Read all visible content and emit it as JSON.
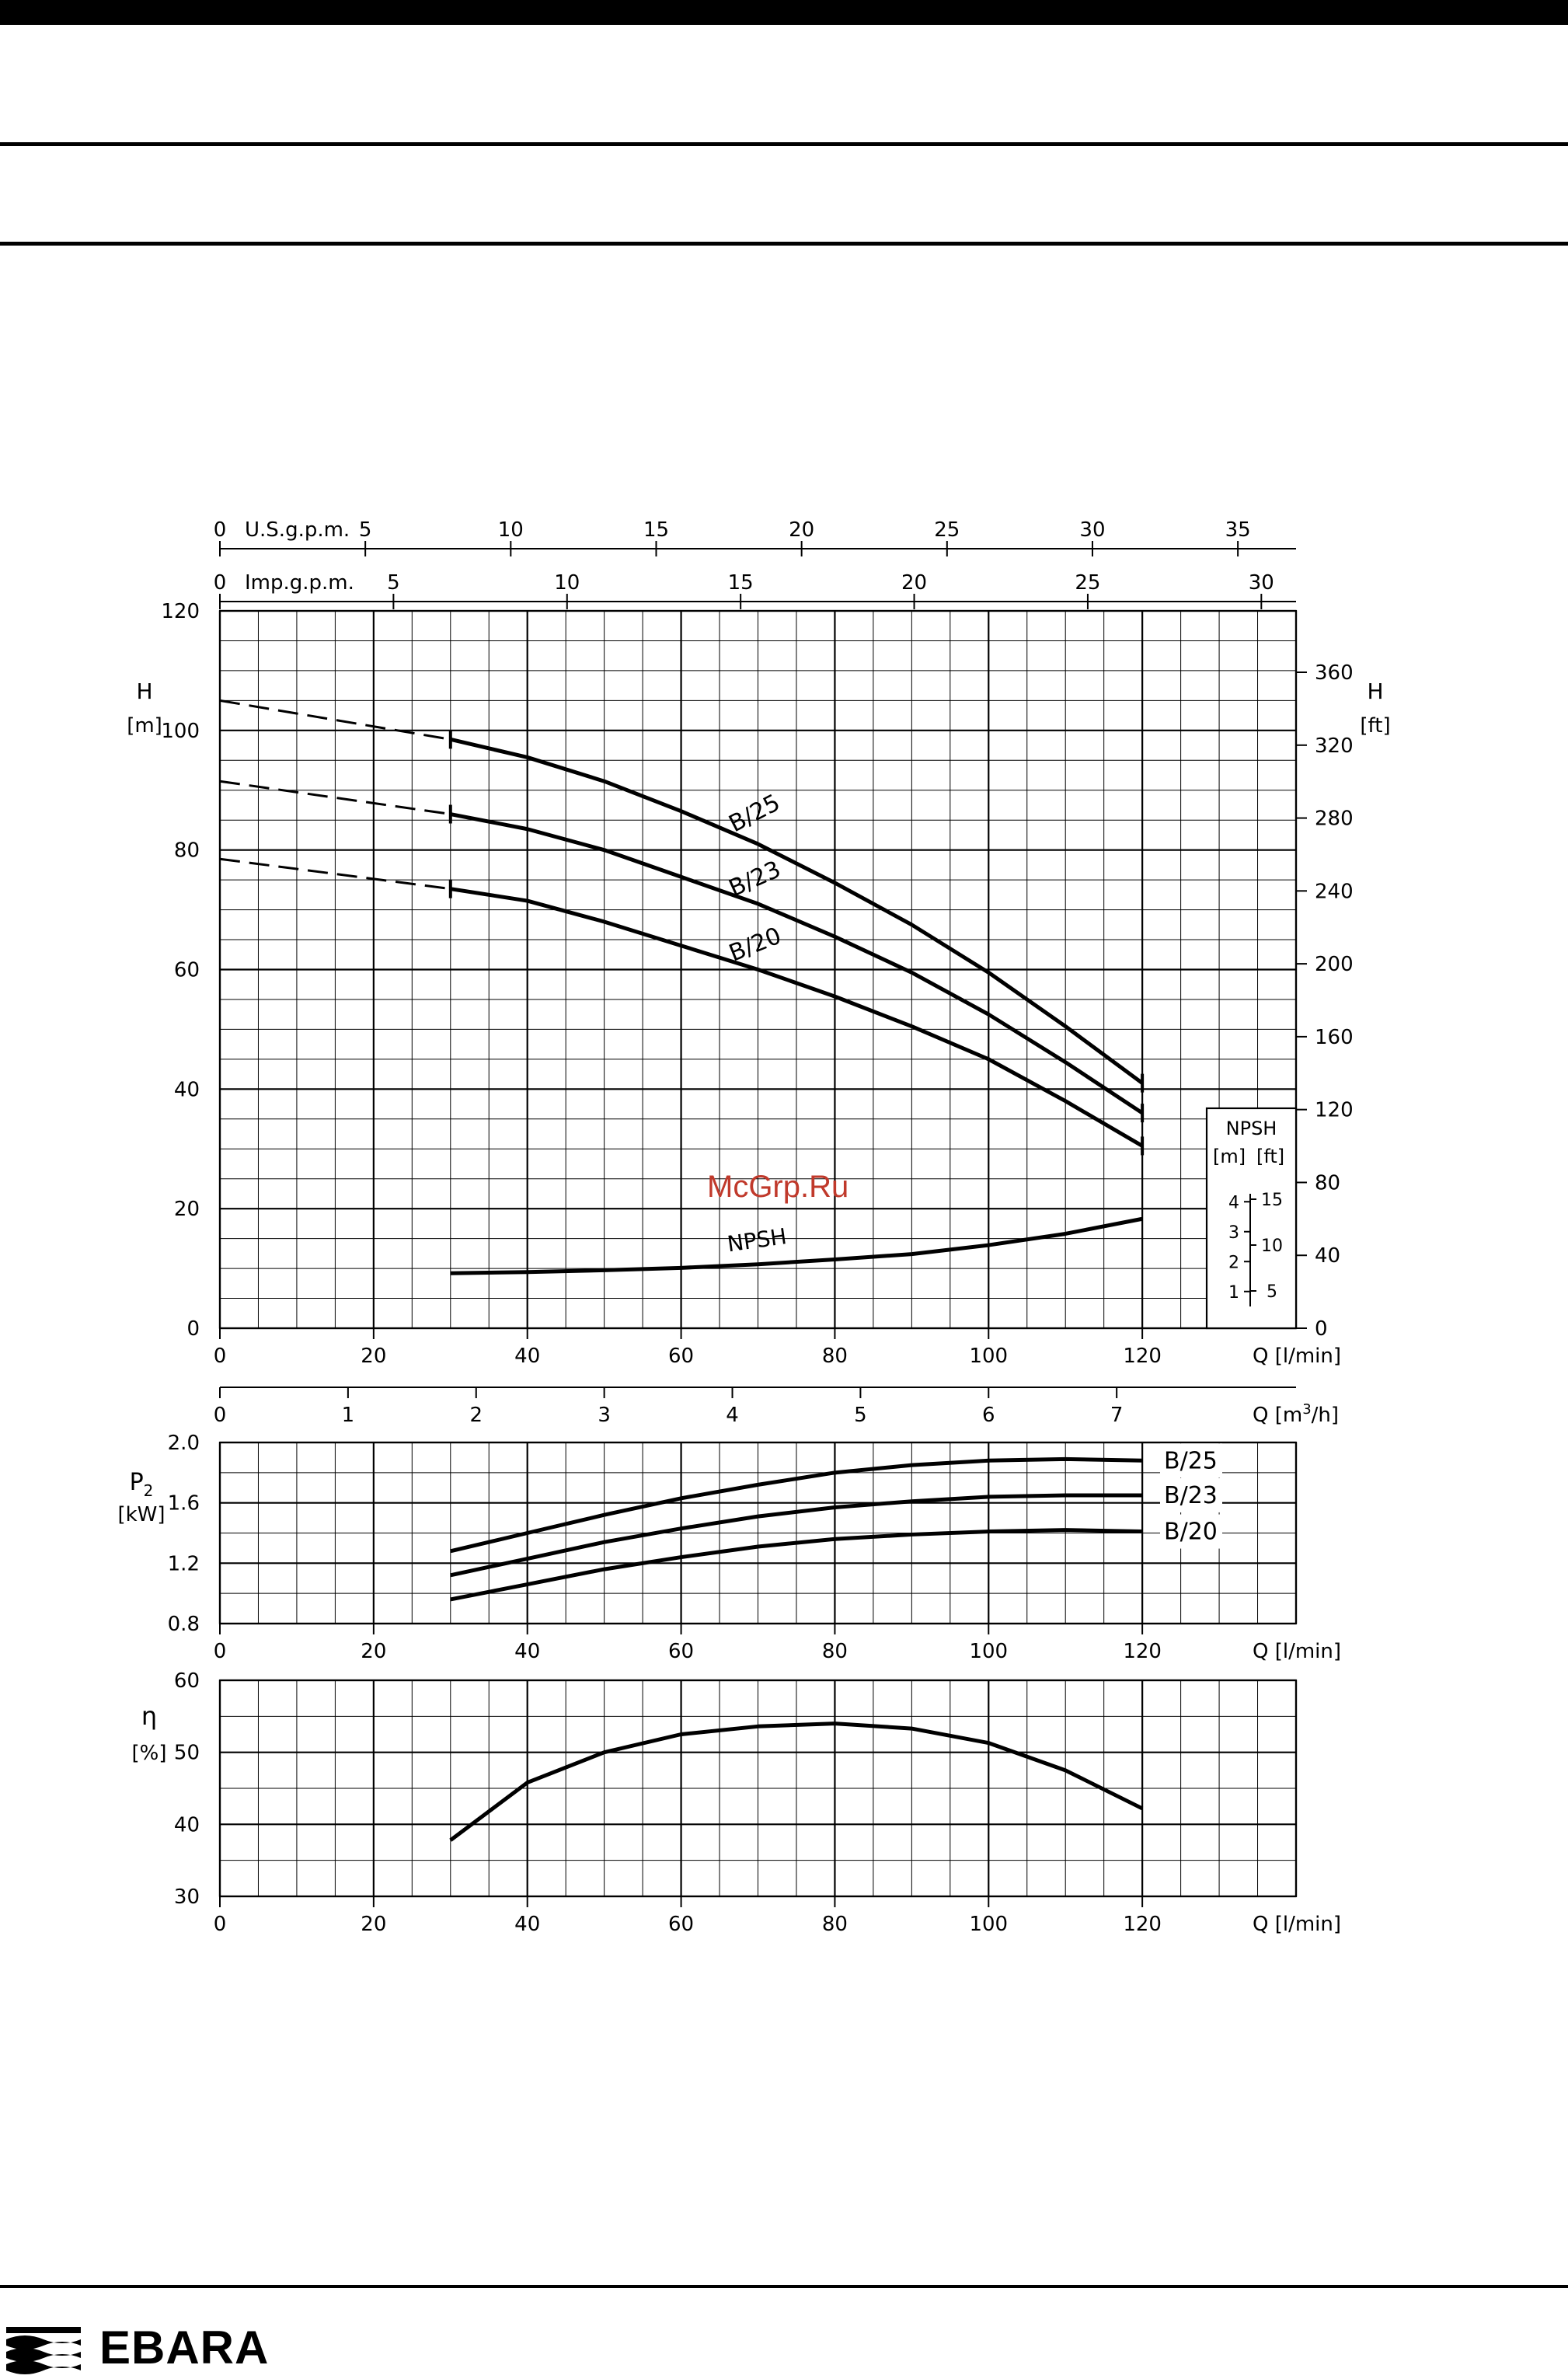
{
  "brand": {
    "name": "EBARA"
  },
  "watermark": "McGrp.Ru",
  "colors": {
    "ink": "#000000",
    "watermark": "#c0392b"
  },
  "axes": {
    "usgpm": {
      "label": "U.S.g.p.m.",
      "ticks": [
        0,
        5,
        10,
        15,
        20,
        25,
        30,
        35
      ],
      "max": 37
    },
    "impgpm": {
      "label": "Imp.g.p.m.",
      "ticks": [
        0,
        5,
        10,
        15,
        20,
        25,
        30
      ],
      "max": 31
    },
    "q": {
      "label": "Q [l/min]",
      "ticks": [
        0,
        20,
        40,
        60,
        80,
        100,
        120
      ],
      "max": 140
    },
    "m3h": {
      "label_prefix": "Q [m",
      "label_exp": "3",
      "label_suffix": "/h]",
      "ticks": [
        0,
        1,
        2,
        3,
        4,
        5,
        6,
        7
      ],
      "max": 8.4
    }
  },
  "chart_data": [
    {
      "type": "line",
      "title": "",
      "xlabel": "Q [l/min]",
      "ylabel": "H",
      "ylabel_unit": "[m]",
      "ylabel_right": "H",
      "ylabel_right_unit": "[ft]",
      "xlim": [
        0,
        140
      ],
      "ylim": [
        0,
        120
      ],
      "yticks": [
        0,
        20,
        40,
        60,
        80,
        100,
        120
      ],
      "yticks_right": [
        0,
        40,
        80,
        120,
        160,
        200,
        240,
        280,
        320,
        360
      ],
      "ylim_right": [
        0,
        393.7
      ],
      "grid": true,
      "series": [
        {
          "name": "B/25",
          "dashed_until": 30,
          "x": [
            0,
            30,
            40,
            50,
            60,
            70,
            80,
            90,
            100,
            110,
            120
          ],
          "y": [
            105,
            98.5,
            95.5,
            91.5,
            86.5,
            81,
            74.5,
            67.5,
            59.5,
            50.5,
            41
          ]
        },
        {
          "name": "B/23",
          "dashed_until": 30,
          "x": [
            0,
            30,
            40,
            50,
            60,
            70,
            80,
            90,
            100,
            110,
            120
          ],
          "y": [
            91.5,
            86,
            83.5,
            80,
            75.5,
            71,
            65.5,
            59.5,
            52.5,
            44.5,
            36
          ]
        },
        {
          "name": "B/20",
          "dashed_until": 30,
          "x": [
            0,
            30,
            40,
            50,
            60,
            70,
            80,
            90,
            100,
            110,
            120
          ],
          "y": [
            78.5,
            73.5,
            71.5,
            68,
            64,
            60,
            55.5,
            50.5,
            45,
            38,
            30.5
          ]
        },
        {
          "name": "NPSH",
          "x": [
            30,
            40,
            50,
            60,
            70,
            80,
            90,
            100,
            110,
            120
          ],
          "y": [
            9.2,
            9.4,
            9.7,
            10.1,
            10.7,
            11.5,
            12.4,
            13.9,
            15.8,
            18.3
          ]
        }
      ],
      "npsh_box": {
        "title": "NPSH",
        "unit_m": "[m]",
        "unit_ft": "[ft]",
        "m_ticks": [
          1,
          2,
          3,
          4
        ],
        "ft_ticks": [
          5,
          10,
          15
        ]
      }
    },
    {
      "type": "line",
      "title": "",
      "xlabel": "Q [l/min]",
      "ylabel": "P",
      "ylabel_sub": "2",
      "ylabel_unit": "[kW]",
      "xlim": [
        0,
        140
      ],
      "ylim": [
        0.8,
        2.0
      ],
      "yticks": [
        "0.8",
        "1.2",
        "1.6",
        "2.0"
      ],
      "grid": true,
      "series": [
        {
          "name": "B/25",
          "x": [
            30,
            40,
            50,
            60,
            70,
            80,
            90,
            100,
            110,
            120
          ],
          "y": [
            1.28,
            1.4,
            1.52,
            1.63,
            1.72,
            1.8,
            1.85,
            1.88,
            1.89,
            1.88
          ]
        },
        {
          "name": "B/23",
          "x": [
            30,
            40,
            50,
            60,
            70,
            80,
            90,
            100,
            110,
            120
          ],
          "y": [
            1.12,
            1.23,
            1.34,
            1.43,
            1.51,
            1.57,
            1.61,
            1.64,
            1.65,
            1.65
          ]
        },
        {
          "name": "B/20",
          "x": [
            30,
            40,
            50,
            60,
            70,
            80,
            90,
            100,
            110,
            120
          ],
          "y": [
            0.96,
            1.06,
            1.16,
            1.24,
            1.31,
            1.36,
            1.39,
            1.41,
            1.42,
            1.41
          ]
        }
      ]
    },
    {
      "type": "line",
      "title": "",
      "xlabel": "Q [l/min]",
      "ylabel": "η",
      "ylabel_unit": "[%]",
      "xlim": [
        0,
        140
      ],
      "ylim": [
        30,
        60
      ],
      "yticks": [
        30,
        40,
        50,
        60
      ],
      "grid": true,
      "series": [
        {
          "name": "",
          "x": [
            30,
            40,
            50,
            60,
            70,
            80,
            90,
            100,
            110,
            120
          ],
          "y": [
            37.8,
            45.8,
            50.0,
            52.5,
            53.6,
            54.0,
            53.3,
            51.3,
            47.5,
            42.2
          ]
        }
      ]
    }
  ]
}
